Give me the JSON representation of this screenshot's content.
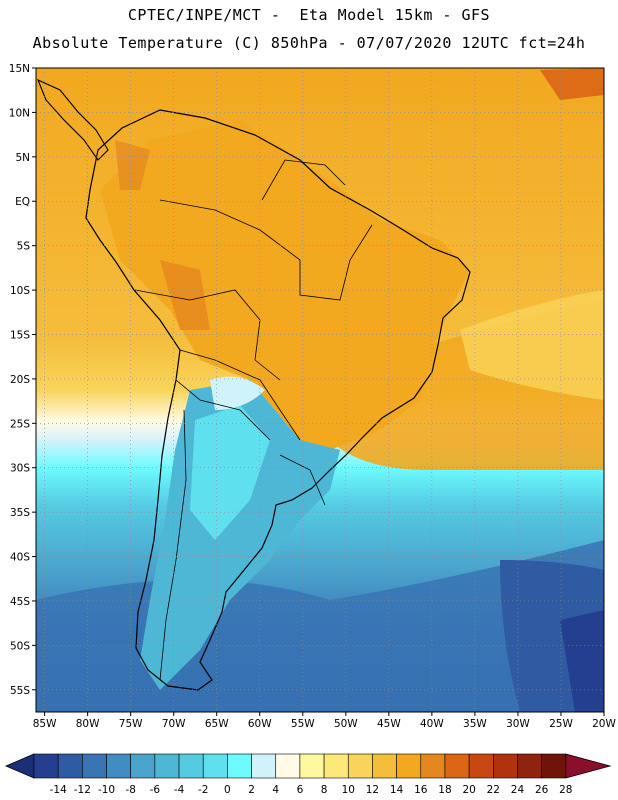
{
  "title": {
    "line1": "CPTEC/INPE/MCT -  Eta Model 15km - GFS",
    "line2": "Absolute Temperature (C) 850hPa - 07/07/2020 12UTC fct=24h"
  },
  "map": {
    "lat_labels": [
      "15N",
      "10N",
      "5N",
      "EQ",
      "5S",
      "10S",
      "15S",
      "20S",
      "25S",
      "30S",
      "35S",
      "40S",
      "45S",
      "50S",
      "55S"
    ],
    "lon_labels": [
      "85W",
      "80W",
      "75W",
      "70W",
      "65W",
      "60W",
      "55W",
      "50W",
      "45W",
      "40W",
      "35W",
      "30W",
      "25W",
      "20W"
    ],
    "lat_range": [
      15,
      -57.5
    ],
    "lon_range": [
      -86,
      -20
    ]
  },
  "colorbar": {
    "labels": [
      "-14",
      "-12",
      "-10",
      "-8",
      "-6",
      "-4",
      "-2",
      "0",
      "2",
      "4",
      "6",
      "8",
      "10",
      "12",
      "14",
      "16",
      "18",
      "20",
      "22",
      "24",
      "26",
      "28"
    ],
    "colors": [
      "#243f8f",
      "#2f5ba3",
      "#3874b4",
      "#418dc3",
      "#4aa3cd",
      "#4fb7d6",
      "#55cbe2",
      "#5fe0ee",
      "#6dfbff",
      "#d0f2fb",
      "#fffbe7",
      "#fff8a0",
      "#fde97a",
      "#f9d45a",
      "#f5bd3c",
      "#f2a81f",
      "#e3871e",
      "#dc6516",
      "#c94711",
      "#b0330e",
      "#8f230c",
      "#6e1409",
      "#8a0f2a"
    ],
    "under_color": "#1a2f78",
    "over_color": "#8a0f2a"
  }
}
